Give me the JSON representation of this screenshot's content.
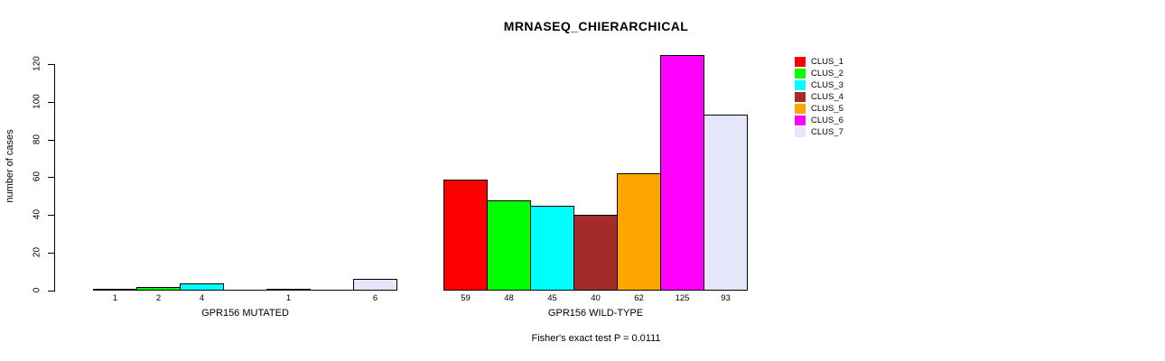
{
  "title": "MRNASEQ_CHIERARCHICAL",
  "footnote": "Fisher's exact test P = 0.0111",
  "y_axis": {
    "label": "number of cases",
    "ticks": [
      0,
      20,
      40,
      60,
      80,
      100,
      120
    ]
  },
  "chart_data": {
    "type": "bar",
    "title": "MRNASEQ_CHIERARCHICAL",
    "ylabel": "number of cases",
    "xlabel": "",
    "ylim": [
      0,
      128
    ],
    "yticks": [
      0,
      20,
      40,
      60,
      80,
      100,
      120
    ],
    "grid": false,
    "legend_position": "right",
    "series_labels": [
      "CLUS_1",
      "CLUS_2",
      "CLUS_3",
      "CLUS_4",
      "CLUS_5",
      "CLUS_6",
      "CLUS_7"
    ],
    "colors": [
      "#FF0000",
      "#00FF00",
      "#00FFFF",
      "#A52A2A",
      "#FFA500",
      "#FF00FF",
      "#E6E6FA"
    ],
    "groups": [
      {
        "label": "GPR156 MUTATED",
        "values": [
          1,
          2,
          4,
          0,
          1,
          0,
          6
        ],
        "bar_labels": [
          "1",
          "2",
          "4",
          "",
          "1",
          "",
          "6"
        ]
      },
      {
        "label": "GPR156 WILD-TYPE",
        "values": [
          59,
          48,
          45,
          40,
          62,
          125,
          93
        ],
        "bar_labels": [
          "59",
          "48",
          "45",
          "40",
          "62",
          "125",
          "93"
        ]
      }
    ],
    "annotation": "Fisher's exact test P = 0.0111"
  }
}
